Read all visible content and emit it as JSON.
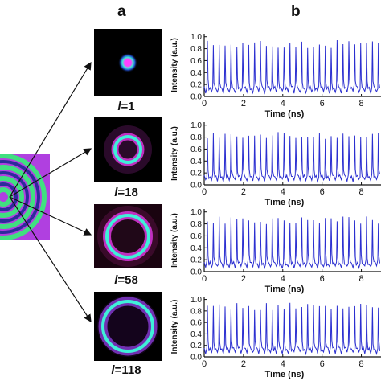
{
  "panel_a_label": "a",
  "panel_b_label": "b",
  "mode_labels": [
    {
      "symbol": "l",
      "value": "=1"
    },
    {
      "symbol": "l",
      "value": "=18"
    },
    {
      "symbol": "l",
      "value": "=58"
    },
    {
      "symbol": "l",
      "value": "=118"
    }
  ],
  "colors": {
    "trace": "#2b2fd0",
    "ring_cyan": "#3ff0d8",
    "ring_magenta": "#c030c0",
    "source_bg": "#b040e0",
    "source_ring": "#40e080"
  },
  "chart_data": [
    {
      "type": "line",
      "panel": "l=1",
      "xlabel": "Time (ns)",
      "ylabel": "Intensity (a.u.)",
      "xlim": [
        0,
        9
      ],
      "ylim": [
        0,
        1.05
      ],
      "x_ticks": [
        "0",
        "2",
        "4",
        "6",
        "8"
      ],
      "y_ticks": [
        "0.0",
        "0.2",
        "0.4",
        "0.6",
        "0.8",
        "1.0"
      ],
      "pulse_count": 30,
      "pulse_peak": 0.9,
      "baseline": 0.12
    },
    {
      "type": "line",
      "panel": "l=18",
      "xlabel": "Time (ns)",
      "ylabel": "Intensity (a.u.)",
      "xlim": [
        0,
        9
      ],
      "ylim": [
        0,
        1.05
      ],
      "x_ticks": [
        "0",
        "2",
        "4",
        "6",
        "8"
      ],
      "y_ticks": [
        "0.0",
        "0.2",
        "0.4",
        "0.6",
        "0.8",
        "1.0"
      ],
      "pulse_count": 30,
      "pulse_peak": 0.85,
      "baseline": 0.12
    },
    {
      "type": "line",
      "panel": "l=58",
      "xlabel": "Time (ns)",
      "ylabel": "Intensity (a.u.)",
      "xlim": [
        0,
        9
      ],
      "ylim": [
        0,
        1.05
      ],
      "x_ticks": [
        "0",
        "2",
        "4",
        "6",
        "8"
      ],
      "y_ticks": [
        "0.0",
        "0.2",
        "0.4",
        "0.6",
        "0.8",
        "1.0"
      ],
      "pulse_count": 30,
      "pulse_peak": 0.88,
      "baseline": 0.12
    },
    {
      "type": "line",
      "panel": "l=118",
      "xlabel": "Time (ns)",
      "ylabel": "Intensity (a.u.)",
      "xlim": [
        0,
        9
      ],
      "ylim": [
        0,
        1.05
      ],
      "x_ticks": [
        "0",
        "2",
        "4",
        "6",
        "8"
      ],
      "y_ticks": [
        "0.0",
        "0.2",
        "0.4",
        "0.6",
        "0.8",
        "1.0"
      ],
      "pulse_count": 30,
      "pulse_peak": 0.9,
      "baseline": 0.12
    }
  ]
}
